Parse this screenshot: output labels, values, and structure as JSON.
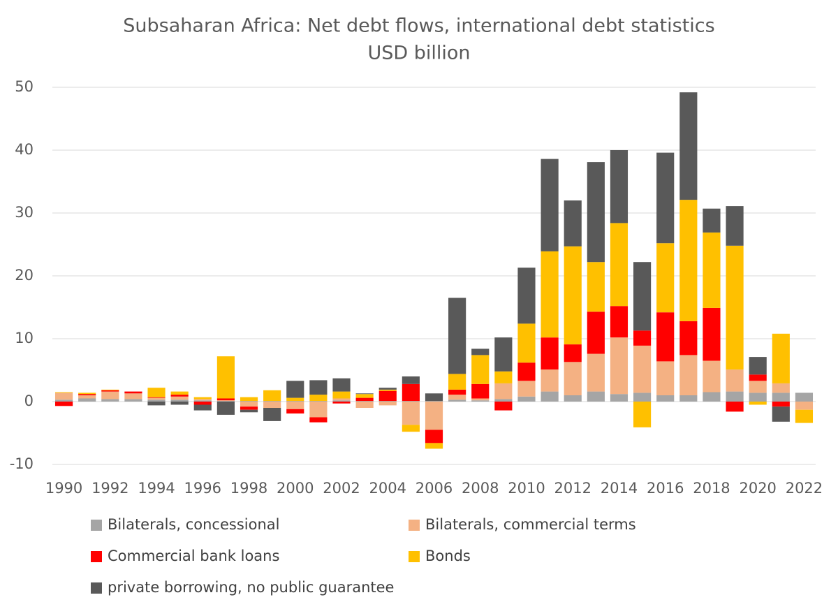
{
  "chart_data": {
    "type": "stacked-bar",
    "title": "Subsaharan Africa: Net debt flows, international debt statistics",
    "subtitle": "USD billion",
    "categories": [
      "1990",
      null,
      "1992",
      null,
      "1994",
      null,
      "1996",
      null,
      "1998",
      null,
      "2000",
      null,
      "2002",
      null,
      "2004",
      null,
      "2006",
      null,
      "2008",
      null,
      "2010",
      null,
      "2012",
      null,
      "2014",
      null,
      "2016",
      null,
      "2018",
      null,
      "2020",
      null,
      "2022"
    ],
    "series": [
      {
        "name": "Bilaterals, concessional",
        "color": "#a5a5a5",
        "values": [
          0.3,
          0.5,
          0.4,
          0.4,
          0.3,
          0.3,
          0.2,
          0.1,
          0.1,
          0.1,
          0.1,
          0.1,
          0.2,
          0.1,
          0.1,
          0.1,
          0.1,
          0.3,
          0.2,
          0.4,
          0.8,
          1.6,
          1.0,
          1.6,
          1.2,
          1.4,
          1.0,
          1.0,
          1.5,
          1.6,
          1.4,
          1.4,
          1.4
        ]
      },
      {
        "name": "Bilaterals, commercial terms",
        "color": "#f4b183",
        "values": [
          1.1,
          0.5,
          1.2,
          0.9,
          0.3,
          0.5,
          0.2,
          0.1,
          -0.8,
          -1.0,
          -1.2,
          -2.5,
          0.3,
          -1.0,
          -0.6,
          -3.7,
          -4.5,
          0.8,
          0.3,
          2.5,
          2.5,
          3.5,
          5.3,
          6.0,
          9.0,
          7.5,
          5.4,
          6.4,
          5.0,
          3.5,
          1.9,
          1.5,
          -1.3
        ]
      },
      {
        "name": "Commercial bank loans",
        "color": "#ff0000",
        "values": [
          -0.7,
          0.2,
          0.2,
          0.3,
          0.1,
          0.3,
          -0.5,
          0.3,
          -0.5,
          0,
          -0.7,
          -0.8,
          -0.3,
          0.5,
          1.6,
          2.7,
          -2.1,
          0.8,
          2.3,
          -1.4,
          2.9,
          5.1,
          2.8,
          6.7,
          5.0,
          2.4,
          7.8,
          5.4,
          8.4,
          -1.6,
          1.0,
          -0.8,
          0
        ]
      },
      {
        "name": "Bonds",
        "color": "#ffc000",
        "values": [
          0.1,
          0.2,
          0.1,
          0,
          1.5,
          0.5,
          0.3,
          6.7,
          0.6,
          1.7,
          0.5,
          1.0,
          1.1,
          0.6,
          0.2,
          -1.1,
          -0.9,
          2.5,
          4.6,
          1.9,
          6.2,
          13.7,
          15.6,
          7.9,
          13.2,
          -4.1,
          11.0,
          19.3,
          12.0,
          19.7,
          -0.5,
          7.9,
          -2.1
        ]
      },
      {
        "name": "private borrowing, no public guarantee",
        "color": "#595959",
        "values": [
          0,
          0,
          0,
          0,
          -0.6,
          -0.5,
          -0.9,
          -2.1,
          -0.4,
          -2.1,
          2.7,
          2.3,
          2.1,
          0.1,
          0.3,
          1.2,
          1.2,
          12.1,
          1.0,
          5.4,
          8.9,
          14.7,
          7.3,
          15.9,
          11.6,
          10.9,
          14.4,
          17.1,
          3.8,
          6.3,
          2.8,
          -2.4,
          0
        ]
      }
    ],
    "ylim": [
      -10,
      50
    ],
    "yticks": [
      -10,
      0,
      10,
      20,
      30,
      40,
      50
    ],
    "grid": true
  }
}
